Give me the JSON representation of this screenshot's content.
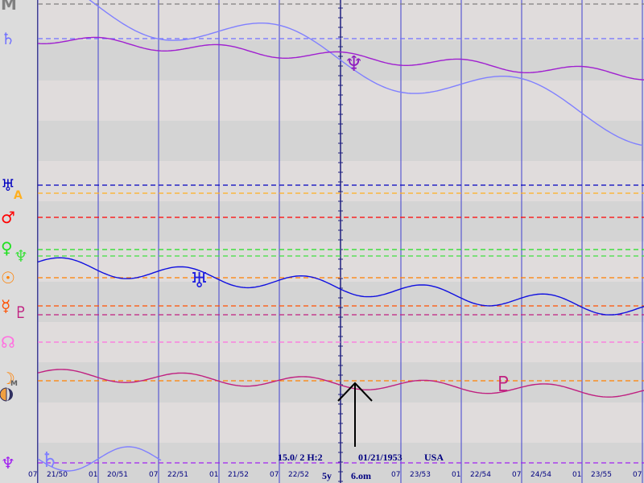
{
  "glyphs": [
    {
      "text": "M",
      "color": "#808080"
    },
    {
      "text": "♄",
      "color": "#7070ff"
    },
    {
      "text": "♅",
      "color": "#0000c0"
    },
    {
      "text": "A",
      "color": "#ffb020"
    },
    {
      "text": "♂",
      "color": "#ff0000"
    },
    {
      "text": "♀",
      "color": "#20e020"
    },
    {
      "text": "♆",
      "color": "#40e040"
    },
    {
      "text": "☉",
      "color": "#ff8000"
    },
    {
      "text": "☿",
      "color": "#ff5000"
    },
    {
      "text": "♇",
      "color": "#c02080"
    },
    {
      "text": "☊",
      "color": "#ff70e0"
    },
    {
      "text": "☽",
      "color": "#ff8000"
    },
    {
      "text": "M",
      "color": "#606060"
    },
    {
      "text": "♆",
      "color": "#a020f0"
    }
  ],
  "markers": [
    {
      "text": "♆",
      "color": "#9020c0"
    },
    {
      "text": "♅",
      "color": "#2020e0"
    },
    {
      "text": "♇",
      "color": "#c02080"
    },
    {
      "text": "♄",
      "color": "#8080ff"
    }
  ],
  "axis": [
    {
      "day": "07",
      "date": "21/50"
    },
    {
      "day": "01",
      "date": "20/51"
    },
    {
      "day": "07",
      "date": "22/51"
    },
    {
      "day": "01",
      "date": "21/52"
    },
    {
      "day": "07",
      "date": "22/52"
    },
    {
      "day": "5y",
      "date": "6.om"
    },
    {
      "day": "07",
      "date": "23/53"
    },
    {
      "day": "01",
      "date": "22/54"
    },
    {
      "day": "07",
      "date": "24/54"
    },
    {
      "day": "01",
      "date": "23/55"
    },
    {
      "day": "07"
    }
  ],
  "info": {
    "orb": "15.0/ 2 H:2",
    "date": "01/21/1953",
    "place": "USA"
  }
}
